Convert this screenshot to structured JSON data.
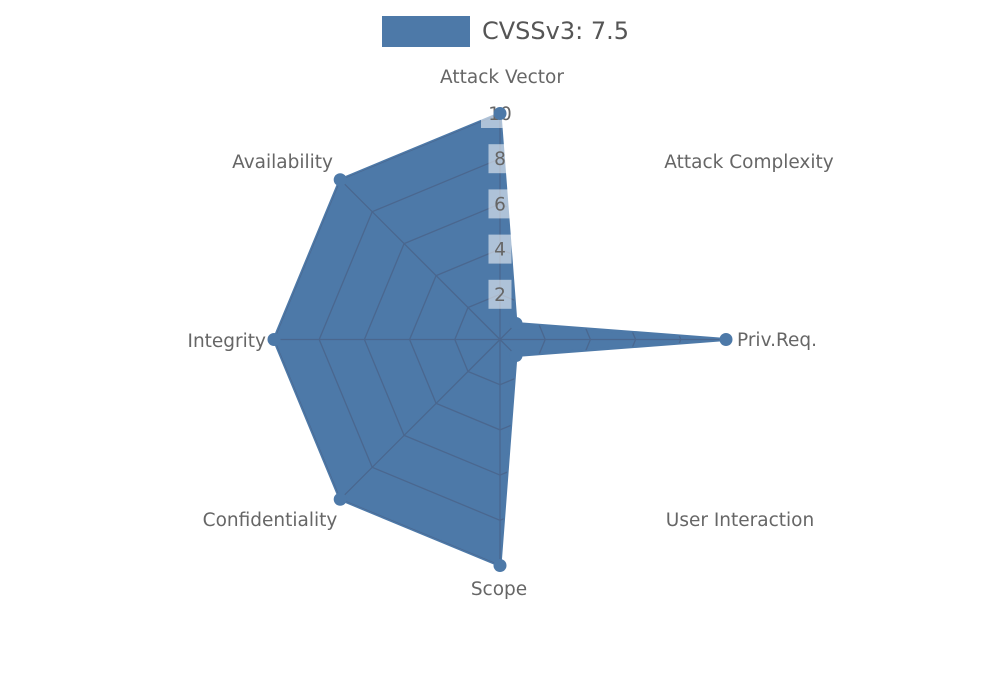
{
  "legend": {
    "label": "CVSSv3: 7.5",
    "swatch_color": "#4d79a8"
  },
  "chart_data": {
    "type": "radar",
    "title": "CVSSv3: 7.5",
    "categories": [
      "Attack Vector",
      "Attack Complexity",
      "Priv.Req.",
      "User Interaction",
      "Scope",
      "Confidentiality",
      "Integrity",
      "Availability"
    ],
    "series": [
      {
        "name": "CVSSv3: 7.5",
        "values": [
          10,
          1,
          10,
          1,
          10,
          10,
          10,
          10
        ]
      }
    ],
    "rmin": 0,
    "rmax": 10,
    "ticks": [
      2,
      4,
      6,
      8,
      10
    ],
    "tick_step": 2,
    "axes_order": "clockwise-from-top",
    "grid": "octagonal rings + spokes, visible only inside filled area",
    "legend_position": "top-center",
    "fill_color": "#4d79a8",
    "stroke_color": "#4d79a8",
    "grid_color": "#4a678f",
    "tick_box_color": "rgba(255,255,255,0.55)",
    "tick_text_color": "#666666",
    "label_color": "#666666"
  }
}
